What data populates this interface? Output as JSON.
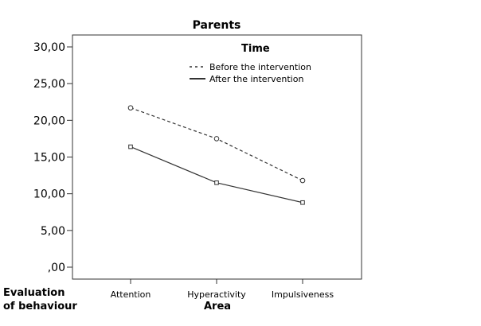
{
  "chart_data": {
    "type": "line",
    "title": "Parents",
    "xlabel": "Area",
    "ylabel": "Evaluation of behaviour",
    "ylabel_lines": [
      "Evaluation",
      "of behaviour"
    ],
    "categories": [
      "Attention",
      "Hyperactivity",
      "Impulsiveness"
    ],
    "ylim": [
      0,
      30
    ],
    "yticks": [
      0,
      5,
      10,
      15,
      20,
      25,
      30
    ],
    "ytick_labels": [
      ",00",
      "5,00",
      "10,00",
      "15,00",
      "20,00",
      "25,00",
      "30,00"
    ],
    "grid": false,
    "legend": {
      "title": "Time",
      "placement": "top-right"
    },
    "series": [
      {
        "name": "Before the intervention",
        "values": [
          21.7,
          17.5,
          11.8
        ],
        "line": "dashed",
        "marker": "circle",
        "color": "#333333"
      },
      {
        "name": "After the intervention",
        "values": [
          16.4,
          11.5,
          8.8
        ],
        "line": "solid",
        "marker": "square",
        "color": "#333333"
      }
    ]
  }
}
